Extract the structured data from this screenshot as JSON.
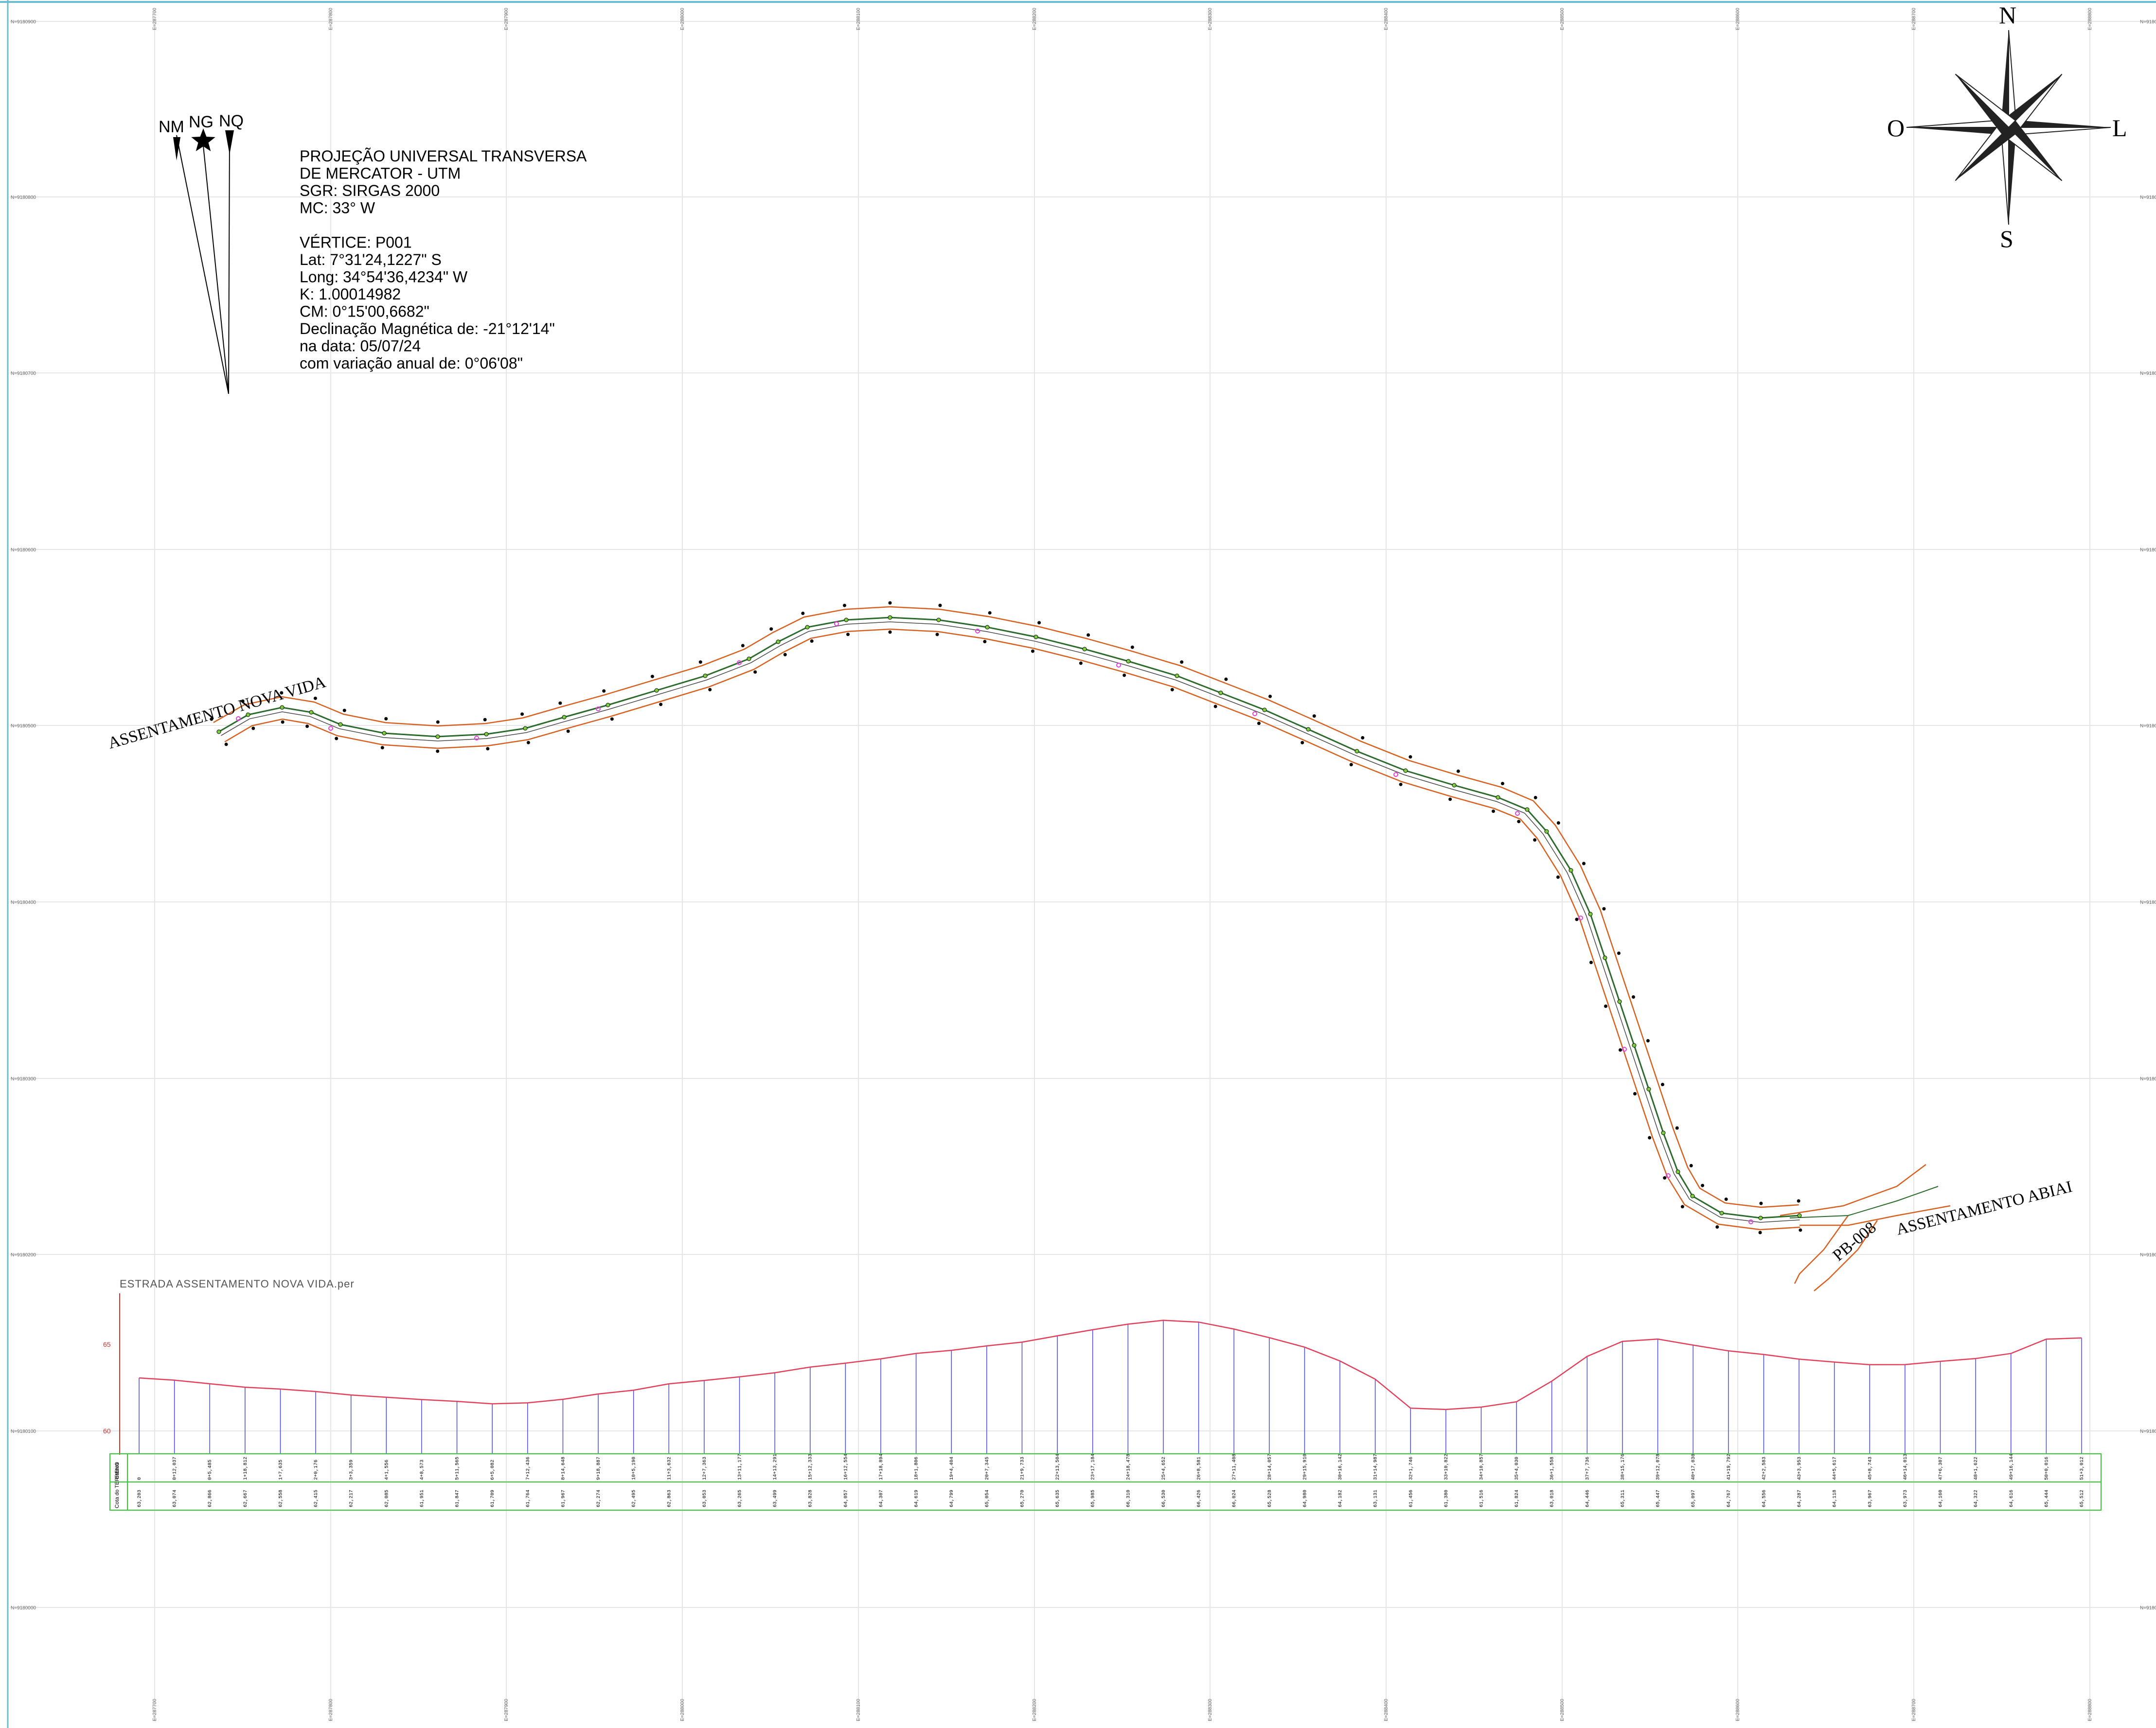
{
  "projection": {
    "lines": [
      "PROJEÇÃO UNIVERSAL TRANSVERSA",
      "DE MERCATOR - UTM",
      "SGR:  SIRGAS 2000",
      "MC: 33° W",
      "",
      "VÉRTICE:  P001",
      "Lat:        7°31'24,1227\" S",
      "Long:   34°54'36,4234\" W",
      "K:        1.00014982",
      "CM:        0°15'00,6682\"",
      "Declinação Magnética de:  -21°12'14\"",
      "na data:                               05/07/24",
      "com variação anual de:        0°06'08\""
    ]
  },
  "north_arrows": {
    "nm": "NM",
    "ng": "NG",
    "nq": "NQ"
  },
  "compass": {
    "n": "N",
    "s": "S",
    "e": "L",
    "w": "O"
  },
  "places": {
    "nova_vida": "ASSENTAMENTO NOVA VIDA",
    "abiai": "ASSENTAMENTO ABIAI",
    "road": "PB-008"
  },
  "grid": {
    "x_labels": [
      "E=287700",
      "E=287800",
      "E=287900",
      "E=288000",
      "E=288100",
      "E=288200",
      "E=288300",
      "E=288400",
      "E=288500",
      "E=288600",
      "E=288700",
      "E=288800"
    ],
    "y_labels": [
      "N=9180900",
      "N=9180800",
      "N=9180700",
      "N=9180600",
      "N=9180500",
      "N=9180400",
      "N=9180300",
      "N=9180200",
      "N=9180100",
      "N=9180000"
    ]
  },
  "profile": {
    "title": "ESTRADA  ASSENTAMENTO  NOVA  VIDA.per",
    "axis_top": "65",
    "axis_bottom": "60",
    "row_head_1": "Estaca",
    "row_head_2": "Cota do TERRENO",
    "stations": [
      "0",
      "0+12,037",
      "0+5,485",
      "1+18,812",
      "1+7,635",
      "2+0,176",
      "3+3,359",
      "4+1,556",
      "4+8,573",
      "5+11,565",
      "6+5,082",
      "7+12,436",
      "8+14,648",
      "9+18,887",
      "10+5,190",
      "11+3,632",
      "12+7,363",
      "13+11,177",
      "14+13,291",
      "15+12,333",
      "16+12,554",
      "17+18,894",
      "18+1,806",
      "19+4,404",
      "20+7,345",
      "21+9,733",
      "22+13,504",
      "23+17,184",
      "24+18,478",
      "25+4,652",
      "26+8,581",
      "27+11,408",
      "28+14,057",
      "29+15,910",
      "30+16,142",
      "31+14,987",
      "32+1,746",
      "33+10,822",
      "34+10,857",
      "35+4,030",
      "36+1,558",
      "37+7,736",
      "38+15,176",
      "39+12,078",
      "40+17,030",
      "41+19,792",
      "42+2,583",
      "43+3,953",
      "44+5,617",
      "45+8,743",
      "46+14,013",
      "47+6,307",
      "48+1,622",
      "49+16,144",
      "50+0,016",
      "51+3,012"
    ],
    "elevations": [
      "63,203",
      "63,074",
      "62,866",
      "62,667",
      "62,558",
      "62,415",
      "62,217",
      "62,085",
      "61,951",
      "61,847",
      "61,709",
      "61,764",
      "61,967",
      "62,274",
      "62,495",
      "62,863",
      "63,053",
      "63,265",
      "63,499",
      "63,828",
      "64,057",
      "64,307",
      "64,619",
      "64,799",
      "65,054",
      "65,270",
      "65,635",
      "65,985",
      "66,310",
      "66,530",
      "66,426",
      "66,024",
      "65,528",
      "64,980",
      "64,182",
      "63,131",
      "61,456",
      "61,380",
      "61,516",
      "61,824",
      "63,018",
      "64,446",
      "65,311",
      "65,447",
      "65,097",
      "64,767",
      "64,556",
      "64,287",
      "64,118",
      "63,967",
      "63,973",
      "64,160",
      "64,322",
      "64,616",
      "65,444",
      "65,512"
    ]
  }
}
